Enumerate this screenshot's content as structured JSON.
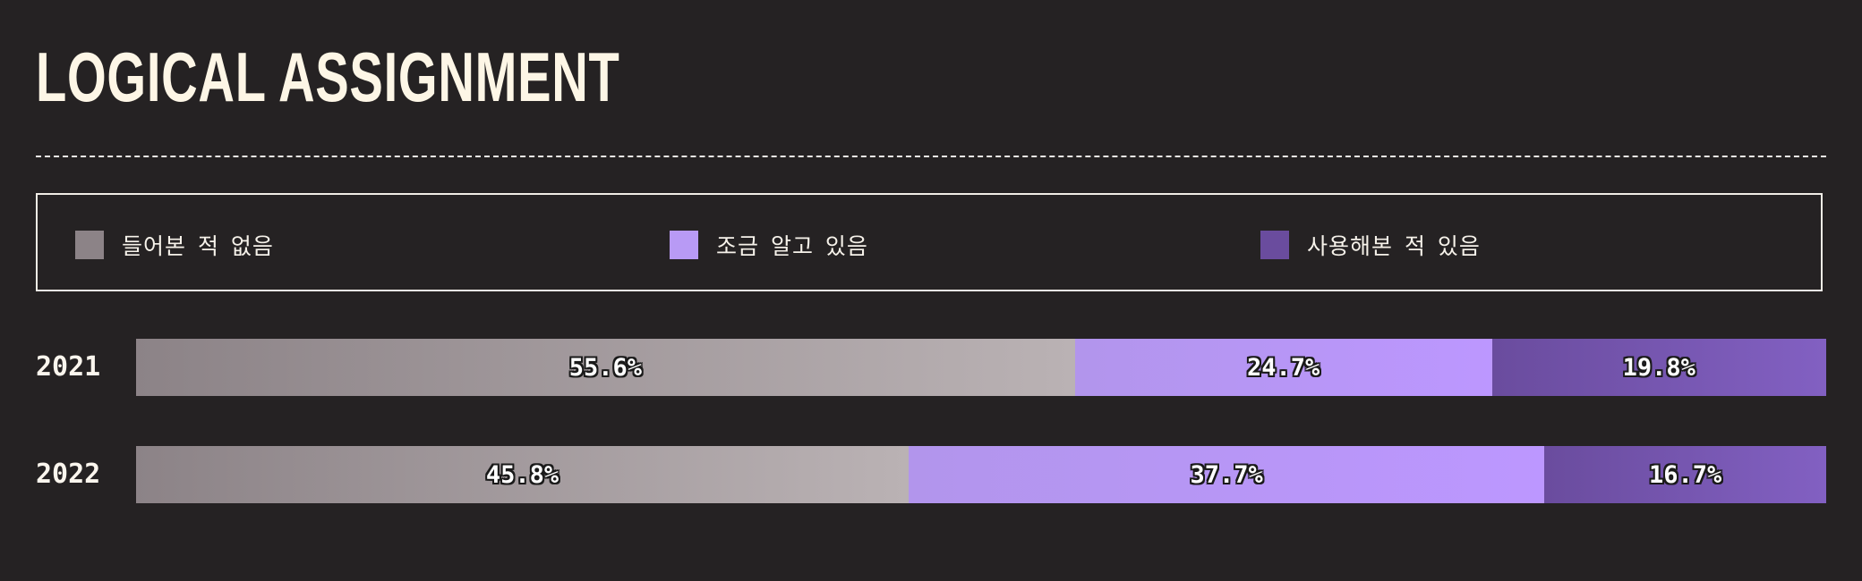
{
  "chart_data": {
    "type": "bar",
    "orientation": "horizontal",
    "stacked": true,
    "normalized": true,
    "title": "LOGICAL ASSIGNMENT",
    "categories": [
      "2021",
      "2022"
    ],
    "series": [
      {
        "name": "들어본 적 없음",
        "values": [
          55.6,
          45.8
        ],
        "labels": [
          "55.6%",
          "45.8%"
        ],
        "color": "#8c8387"
      },
      {
        "name": "조금 알고 있음",
        "values": [
          24.7,
          37.7
        ],
        "labels": [
          "24.7%",
          "37.7%"
        ],
        "color": "#b89af5"
      },
      {
        "name": "사용해본 적 있음",
        "values": [
          19.8,
          16.7
        ],
        "labels": [
          "19.8%",
          "16.7%"
        ],
        "color": "#6a4c9e"
      }
    ],
    "xlim": [
      0,
      100
    ],
    "grid": false,
    "legend": "top"
  },
  "colors": {
    "background": "#252223",
    "text": "#fdf6e6"
  }
}
